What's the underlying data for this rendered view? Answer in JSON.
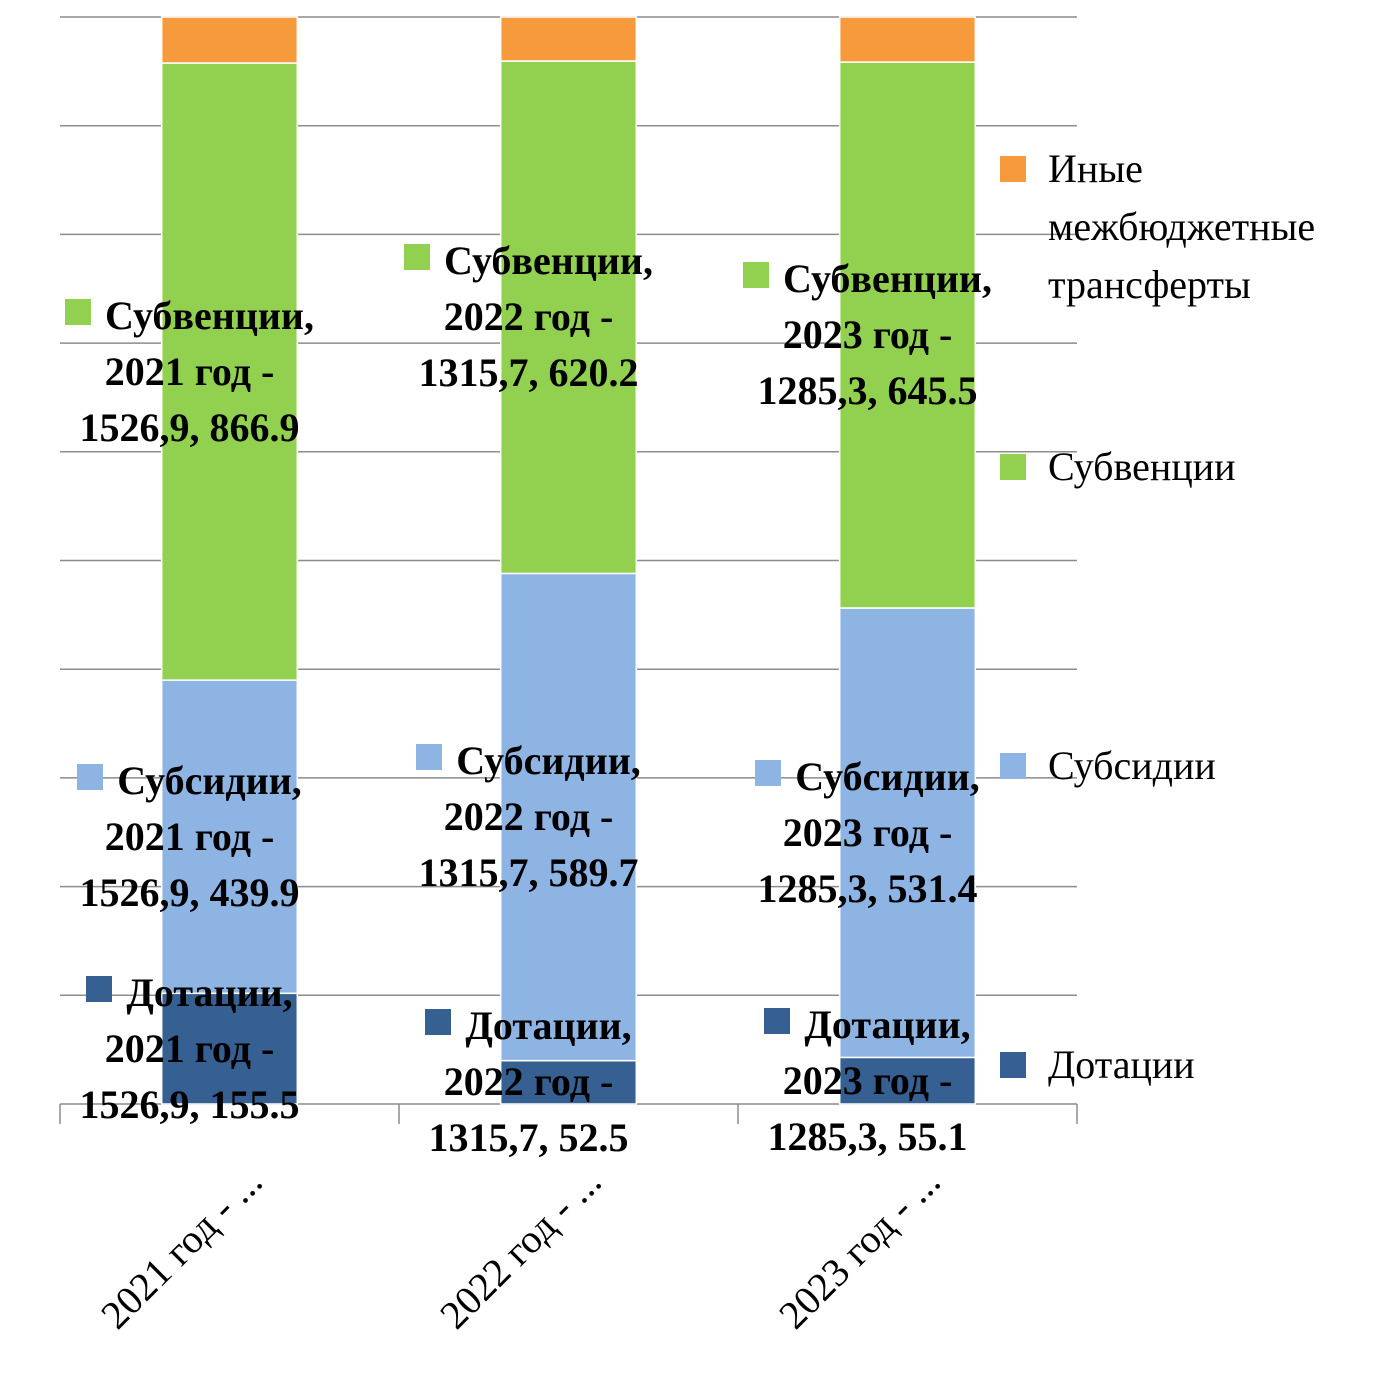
{
  "chart_data": {
    "type": "bar",
    "stacking": "percent",
    "categories": [
      "2021 год - 1526,9",
      "2022 год - 1315,7",
      "2023 год - 1285,3"
    ],
    "tick_labels": [
      "2021 год - ...",
      "2022 год - ...",
      "2023 год - ..."
    ],
    "series": [
      {
        "name": "Дотации",
        "color": "#376092",
        "values": [
          155.5,
          52.5,
          55.1
        ],
        "value_labels": [
          "Дотации, 2021 год - 1526,9, 155.5",
          "Дотации, 2022 год - 1315,7, 52.5",
          "Дотации, 2023 год - 1285,3, 55.1"
        ]
      },
      {
        "name": "Субсидии",
        "color": "#8eb4e3",
        "values": [
          439.9,
          589.7,
          531.4
        ],
        "value_labels": [
          "Субсидии, 2021 год - 1526,9, 439.9",
          "Субсидии, 2022 год - 1315,7, 589.7",
          "Субсидии, 2023 год - 1285,3, 531.4"
        ]
      },
      {
        "name": "Субвенции",
        "color": "#92d050",
        "values": [
          866.9,
          620.2,
          645.5
        ],
        "value_labels": [
          "Субвенции, 2021 год - 1526,9, 866.9",
          "Субвенции, 2022 год - 1315,7, 620.2",
          "Субвенции, 2023 год - 1285,3, 645.5"
        ]
      },
      {
        "name": "Иные межбюджетные трансферты",
        "color": "#f79a3c",
        "values": [
          64.6,
          53.3,
          53.3
        ]
      }
    ],
    "ylim": [
      0,
      100
    ],
    "yticks": [
      0,
      10,
      20,
      30,
      40,
      50,
      60,
      70,
      80,
      90,
      100
    ],
    "grid": true,
    "legend": "right"
  }
}
